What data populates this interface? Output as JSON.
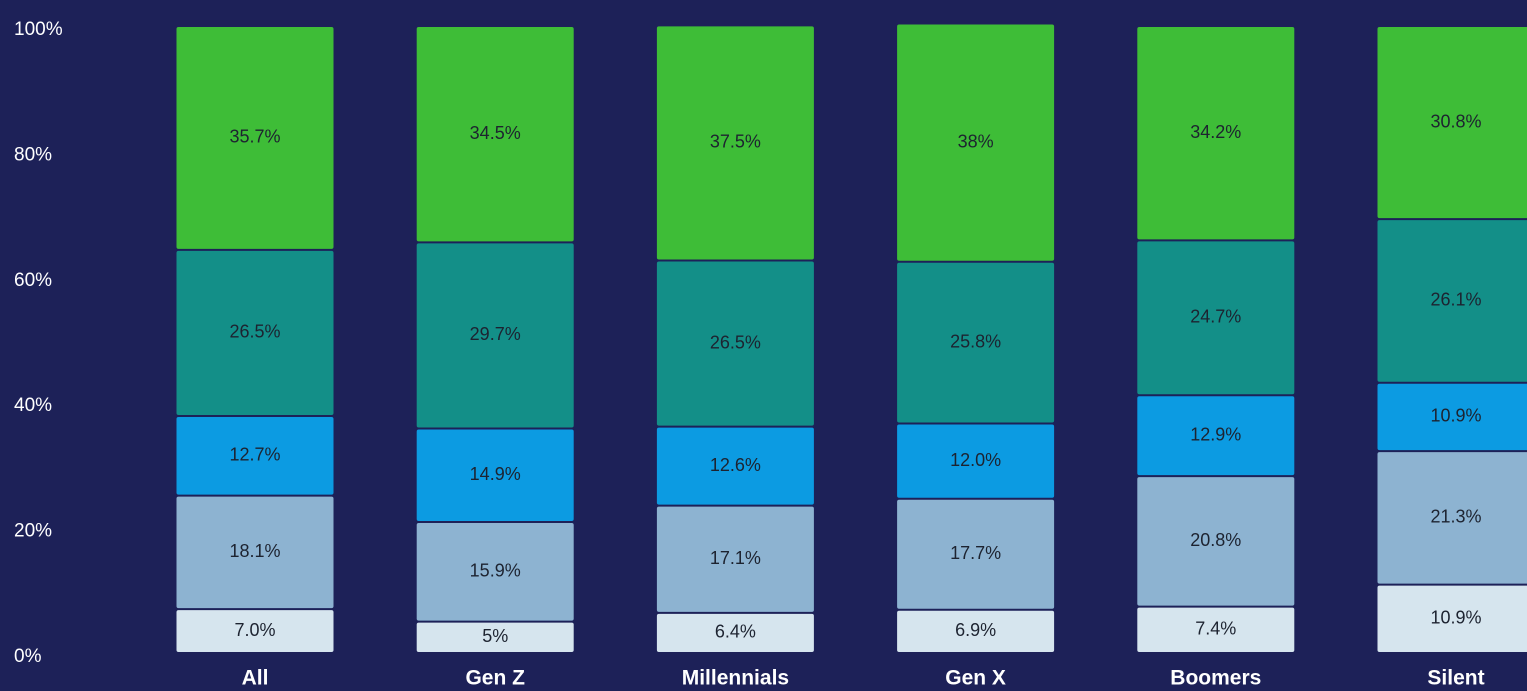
{
  "chart_data": {
    "type": "stacked_bar",
    "categories": [
      "All",
      "Gen Z",
      "Millennials",
      "Gen X",
      "Boomers",
      "Silent"
    ],
    "ylim": [
      0,
      100
    ],
    "yticks": [
      {
        "value": 0,
        "label": "0%"
      },
      {
        "value": 20,
        "label": "20%"
      },
      {
        "value": 40,
        "label": "40%"
      },
      {
        "value": 60,
        "label": "60%"
      },
      {
        "value": 80,
        "label": "80%"
      },
      {
        "value": 100,
        "label": "100%"
      }
    ],
    "grid": false,
    "series": [
      {
        "color": "#d6e5ee",
        "values": [
          7.0,
          5,
          6.4,
          6.9,
          7.4,
          10.9
        ],
        "value_labels": [
          "7.0%",
          "5%",
          "6.4%",
          "6.9%",
          "7.4%",
          "10.9%"
        ]
      },
      {
        "color": "#8db3d1",
        "values": [
          18.1,
          15.9,
          17.1,
          17.7,
          20.8,
          21.3
        ],
        "value_labels": [
          "18.1%",
          "15.9%",
          "17.1%",
          "17.7%",
          "20.8%",
          "21.3%"
        ]
      },
      {
        "color": "#0c9be2",
        "values": [
          12.7,
          14.9,
          12.6,
          12.0,
          12.9,
          10.9
        ],
        "value_labels": [
          "12.7%",
          "14.9%",
          "12.6%",
          "12.0%",
          "12.9%",
          "10.9%"
        ]
      },
      {
        "color": "#138f88",
        "values": [
          26.5,
          29.7,
          26.5,
          25.8,
          24.7,
          26.1
        ],
        "value_labels": [
          "26.5%",
          "29.7%",
          "26.5%",
          "25.8%",
          "24.7%",
          "26.1%"
        ]
      },
      {
        "color": "#3ebd37",
        "values": [
          35.7,
          34.5,
          37.5,
          38,
          34.2,
          30.8
        ],
        "value_labels": [
          "35.7%",
          "34.5%",
          "37.5%",
          "38%",
          "34.2%",
          "30.8%"
        ]
      }
    ]
  }
}
